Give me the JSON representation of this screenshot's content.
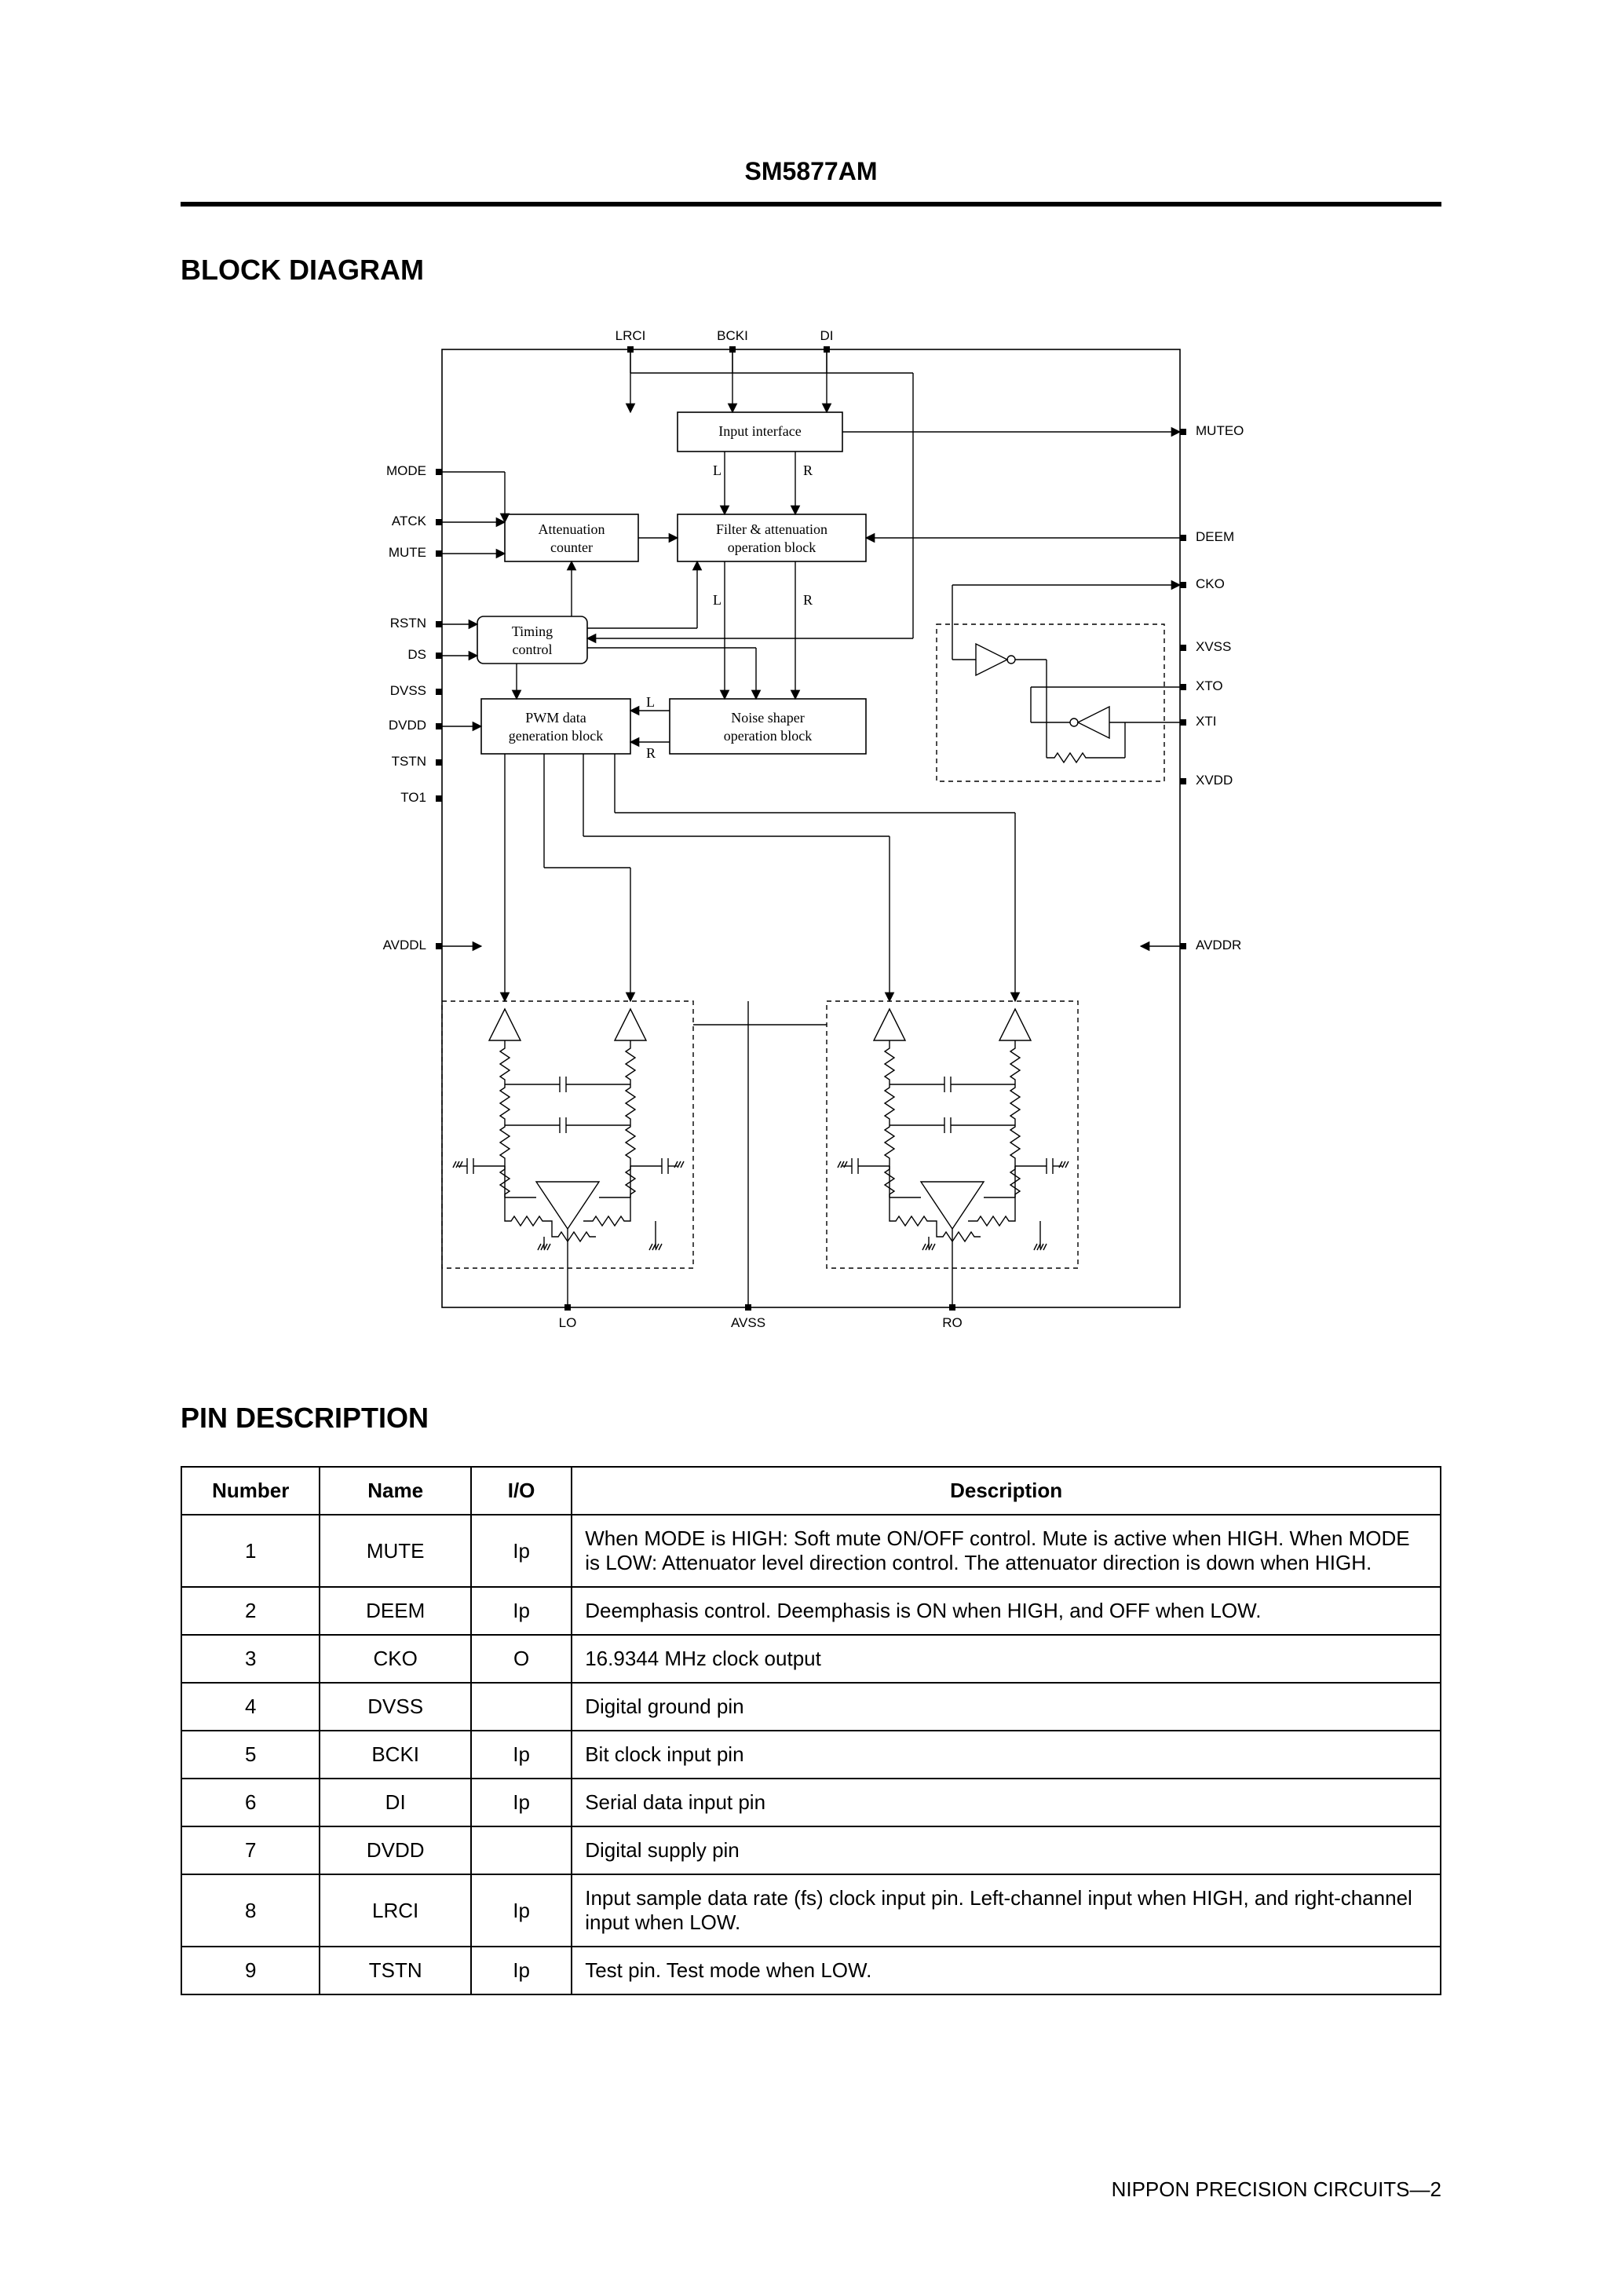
{
  "header": {
    "part_number": "SM5877AM"
  },
  "sections": {
    "block_diagram": "BLOCK DIAGRAM",
    "pin_description": "PIN DESCRIPTION"
  },
  "diagram": {
    "top_pins": [
      "LRCI",
      "BCKI",
      "DI"
    ],
    "left_pins": [
      "MODE",
      "ATCK",
      "MUTE",
      "RSTN",
      "DS",
      "DVSS",
      "DVDD",
      "TSTN",
      "TO1",
      "AVDDL"
    ],
    "right_pins": [
      "MUTEO",
      "DEEM",
      "CKO",
      "XVSS",
      "XTO",
      "XTI",
      "XVDD",
      "AVDDR"
    ],
    "bottom_pins": [
      "LO",
      "AVSS",
      "RO"
    ],
    "blocks": {
      "input_interface": "Input interface",
      "attenuation_counter": [
        "Attenuation",
        "counter"
      ],
      "filter_block": [
        "Filter & attenuation",
        "operation block"
      ],
      "timing_control": [
        "Timing",
        "control"
      ],
      "pwm_block": [
        "PWM data",
        "generation block"
      ],
      "noise_shaper": [
        "Noise shaper",
        "operation block"
      ]
    },
    "channel_labels": {
      "l": "L",
      "r": "R"
    },
    "stroke_color": "#000000",
    "background": "#ffffff",
    "line_width_thin": 1.4,
    "line_width_box": 1.6,
    "dash": "6,5"
  },
  "pin_table": {
    "headers": [
      "Number",
      "Name",
      "I/O",
      "Description"
    ],
    "col_widths_pct": [
      11,
      12,
      8,
      69
    ],
    "rows": [
      [
        "1",
        "MUTE",
        "Ip",
        "When MODE is HIGH: Soft mute ON/OFF control. Mute is active when HIGH. When MODE is LOW: Attenuator level direction control. The attenuator direction is down when HIGH."
      ],
      [
        "2",
        "DEEM",
        "Ip",
        "Deemphasis control. Deemphasis is ON when HIGH, and OFF when LOW."
      ],
      [
        "3",
        "CKO",
        "O",
        "16.9344 MHz clock output"
      ],
      [
        "4",
        "DVSS",
        "",
        "Digital ground pin"
      ],
      [
        "5",
        "BCKI",
        "Ip",
        "Bit clock input pin"
      ],
      [
        "6",
        "DI",
        "Ip",
        "Serial data input pin"
      ],
      [
        "7",
        "DVDD",
        "",
        "Digital supply pin"
      ],
      [
        "8",
        "LRCI",
        "Ip",
        "Input sample data rate (fs) clock input pin. Left-channel input when HIGH, and right-channel input when LOW."
      ],
      [
        "9",
        "TSTN",
        "Ip",
        "Test pin. Test mode when LOW."
      ]
    ]
  },
  "footer": {
    "text": "NIPPON PRECISION CIRCUITS—2"
  }
}
